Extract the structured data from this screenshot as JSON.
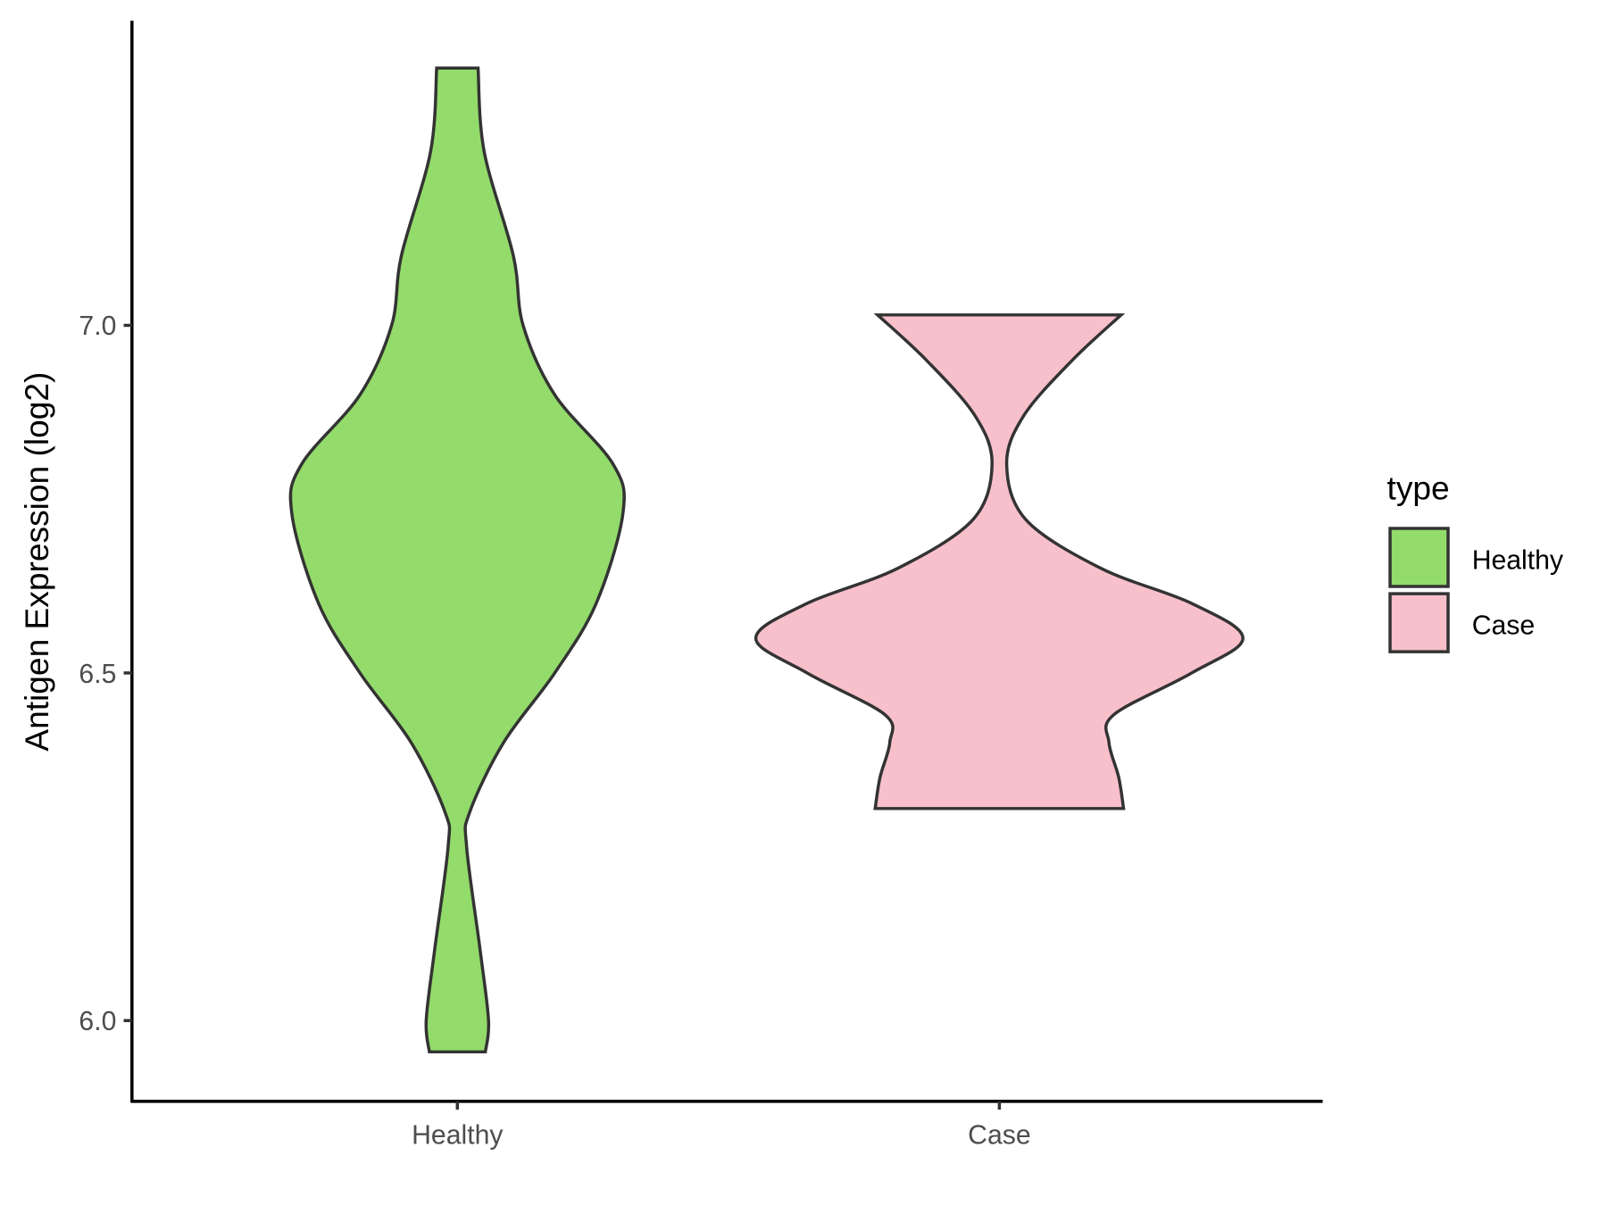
{
  "chart_data": {
    "type": "violin",
    "title": "",
    "xlabel": "",
    "ylabel": "Antigen Expression (log2)",
    "ylim": [
      5.9,
      7.45
    ],
    "yticks": [
      "6.0",
      "6.5",
      "7.0"
    ],
    "categories": [
      "Healthy",
      "Case"
    ],
    "grid": false,
    "legend": {
      "title": "type",
      "placement": "right",
      "entries": [
        "Healthy",
        "Case"
      ]
    },
    "series": [
      {
        "name": "Healthy",
        "color": "#93DB6A",
        "min": 5.955,
        "max": 7.37,
        "density_profile": [
          [
            5.955,
            0.115
          ],
          [
            6.0,
            0.128
          ],
          [
            6.1,
            0.094
          ],
          [
            6.25,
            0.038
          ],
          [
            6.3,
            0.051
          ],
          [
            6.4,
            0.19
          ],
          [
            6.5,
            0.4
          ],
          [
            6.6,
            0.57
          ],
          [
            6.73,
            0.68
          ],
          [
            6.8,
            0.64
          ],
          [
            6.9,
            0.4
          ],
          [
            7.0,
            0.27
          ],
          [
            7.1,
            0.23
          ],
          [
            7.25,
            0.11
          ],
          [
            7.37,
            0.085
          ]
        ]
      },
      {
        "name": "Case",
        "color": "#F8C0CB",
        "min": 6.305,
        "max": 7.015,
        "density_profile": [
          [
            6.305,
            0.51
          ],
          [
            6.35,
            0.49
          ],
          [
            6.4,
            0.45
          ],
          [
            6.44,
            0.47
          ],
          [
            6.5,
            0.79
          ],
          [
            6.55,
            1.0
          ],
          [
            6.6,
            0.79
          ],
          [
            6.65,
            0.42
          ],
          [
            6.72,
            0.11
          ],
          [
            6.8,
            0.03
          ],
          [
            6.87,
            0.1
          ],
          [
            6.95,
            0.3
          ],
          [
            7.015,
            0.5
          ]
        ]
      }
    ]
  }
}
